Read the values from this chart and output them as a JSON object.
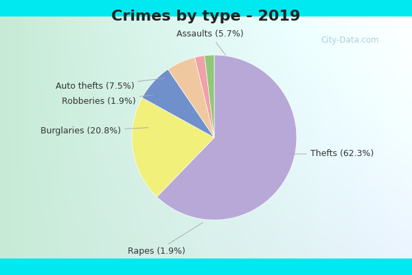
{
  "title": "Crimes by type - 2019",
  "labels": [
    "Thefts",
    "Burglaries",
    "Auto thefts",
    "Assaults",
    "Robberies",
    "Rapes"
  ],
  "percentages": [
    62.3,
    20.8,
    7.5,
    5.7,
    1.9,
    1.9
  ],
  "colors": [
    "#b8a8d8",
    "#f0f07a",
    "#7090cc",
    "#f0c8a0",
    "#f0a0a8",
    "#90c878"
  ],
  "label_texts": [
    "Thefts (62.3%)",
    "Burglaries (20.8%)",
    "Auto thefts (7.5%)",
    "Assaults (5.7%)",
    "Robberies (1.9%)",
    "Rapes (1.9%)"
  ],
  "bg_outer": "#00e8f0",
  "bg_inner_left": "#c8e8d8",
  "bg_inner_right": "#e8f0f8",
  "title_fontsize": 16,
  "label_fontsize": 9,
  "watermark": "City-Data.com",
  "startangle": 90
}
